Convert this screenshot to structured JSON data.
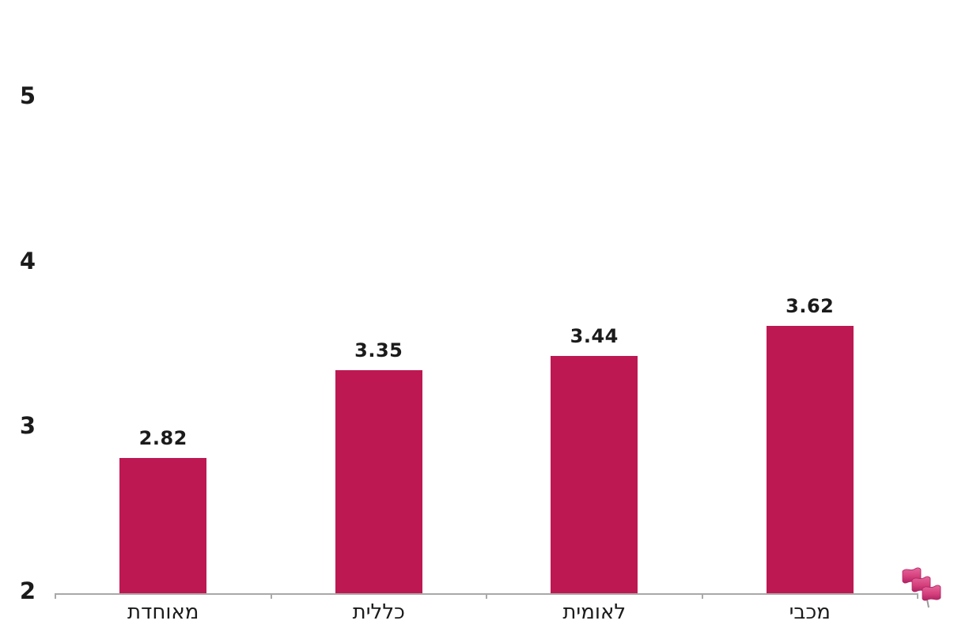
{
  "chart_data": {
    "type": "bar",
    "categories": [
      "מאוחדת",
      "כללית",
      "לאומית",
      "מכבי"
    ],
    "values": [
      2.82,
      3.35,
      3.44,
      3.62
    ],
    "value_labels": [
      "2.82",
      "3.35",
      "3.44",
      "3.62"
    ],
    "title": "",
    "xlabel": "",
    "ylabel": "",
    "ylim": [
      2,
      5
    ],
    "yticks": [
      2,
      3,
      4,
      5
    ],
    "grid": false,
    "legend": "none",
    "bar_color": "#be1853",
    "axis_color": "#a9a9a9",
    "text_color": "#1b1b1b",
    "icon": "flags-icon",
    "icon_colors": {
      "flag_light": "#e5679c",
      "flag_mid": "#d6417d",
      "flag_dark": "#b02263",
      "pole": "#9a9a9a"
    }
  }
}
